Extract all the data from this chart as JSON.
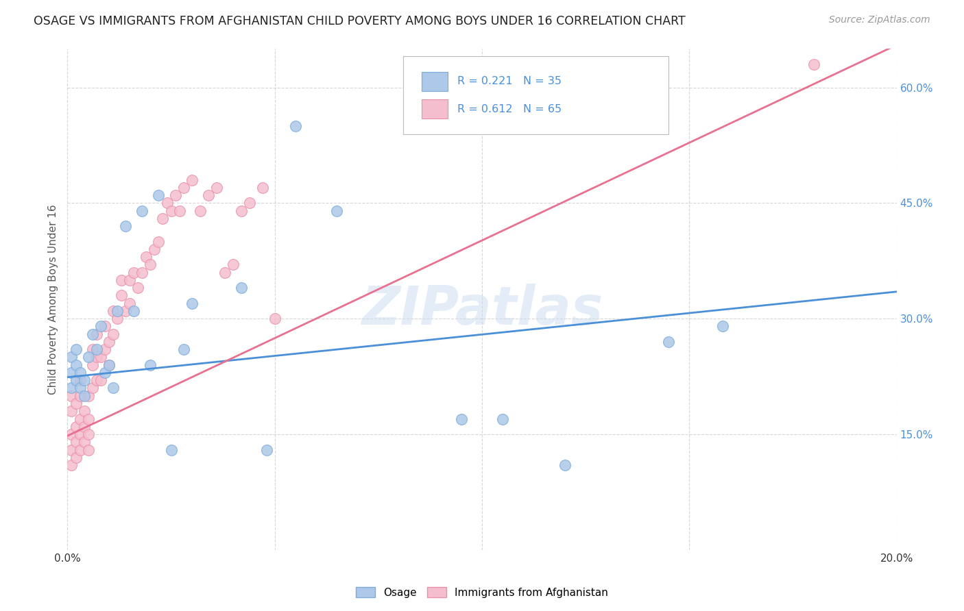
{
  "title": "OSAGE VS IMMIGRANTS FROM AFGHANISTAN CHILD POVERTY AMONG BOYS UNDER 16 CORRELATION CHART",
  "source": "Source: ZipAtlas.com",
  "ylabel": "Child Poverty Among Boys Under 16",
  "xlim": [
    0.0,
    0.2
  ],
  "ylim": [
    0.0,
    0.65
  ],
  "yticks": [
    0.0,
    0.15,
    0.3,
    0.45,
    0.6
  ],
  "xticks": [
    0.0,
    0.05,
    0.1,
    0.15,
    0.2
  ],
  "grid_color": "#cccccc",
  "background_color": "#ffffff",
  "watermark": "ZIPatlas",
  "osage_color": "#adc8e8",
  "osage_edge_color": "#7aabdc",
  "afghanistan_color": "#f5bece",
  "afghanistan_edge_color": "#e890a8",
  "trend_osage_color": "#4a90d9",
  "trend_afghanistan_color": "#e87090",
  "osage_label": "Osage",
  "afghanistan_label": "Immigrants from Afghanistan",
  "osage_x": [
    0.001,
    0.001,
    0.001,
    0.002,
    0.002,
    0.002,
    0.003,
    0.003,
    0.004,
    0.004,
    0.005,
    0.006,
    0.007,
    0.008,
    0.009,
    0.01,
    0.011,
    0.012,
    0.014,
    0.016,
    0.018,
    0.02,
    0.022,
    0.025,
    0.028,
    0.03,
    0.042,
    0.048,
    0.055,
    0.065,
    0.095,
    0.105,
    0.12,
    0.145,
    0.158
  ],
  "osage_y": [
    0.21,
    0.23,
    0.25,
    0.22,
    0.24,
    0.26,
    0.21,
    0.23,
    0.2,
    0.22,
    0.25,
    0.28,
    0.26,
    0.29,
    0.23,
    0.24,
    0.21,
    0.31,
    0.42,
    0.31,
    0.44,
    0.24,
    0.46,
    0.13,
    0.26,
    0.32,
    0.34,
    0.13,
    0.55,
    0.44,
    0.17,
    0.17,
    0.11,
    0.27,
    0.29
  ],
  "afghanistan_x": [
    0.001,
    0.001,
    0.001,
    0.001,
    0.001,
    0.002,
    0.002,
    0.002,
    0.002,
    0.003,
    0.003,
    0.003,
    0.003,
    0.003,
    0.004,
    0.004,
    0.004,
    0.005,
    0.005,
    0.005,
    0.005,
    0.006,
    0.006,
    0.006,
    0.007,
    0.007,
    0.007,
    0.008,
    0.008,
    0.009,
    0.009,
    0.01,
    0.01,
    0.011,
    0.011,
    0.012,
    0.013,
    0.013,
    0.014,
    0.015,
    0.015,
    0.016,
    0.017,
    0.018,
    0.019,
    0.02,
    0.021,
    0.022,
    0.023,
    0.024,
    0.025,
    0.026,
    0.027,
    0.028,
    0.03,
    0.032,
    0.034,
    0.036,
    0.038,
    0.04,
    0.042,
    0.044,
    0.047,
    0.05,
    0.18
  ],
  "afghanistan_y": [
    0.11,
    0.13,
    0.15,
    0.18,
    0.2,
    0.12,
    0.14,
    0.16,
    0.19,
    0.13,
    0.15,
    0.17,
    0.2,
    0.22,
    0.14,
    0.16,
    0.18,
    0.13,
    0.15,
    0.17,
    0.2,
    0.21,
    0.24,
    0.26,
    0.22,
    0.25,
    0.28,
    0.22,
    0.25,
    0.26,
    0.29,
    0.24,
    0.27,
    0.28,
    0.31,
    0.3,
    0.33,
    0.35,
    0.31,
    0.32,
    0.35,
    0.36,
    0.34,
    0.36,
    0.38,
    0.37,
    0.39,
    0.4,
    0.43,
    0.45,
    0.44,
    0.46,
    0.44,
    0.47,
    0.48,
    0.44,
    0.46,
    0.47,
    0.36,
    0.37,
    0.44,
    0.45,
    0.47,
    0.3,
    0.63
  ],
  "trend_osage_x0": 0.0,
  "trend_osage_y0": 0.224,
  "trend_osage_x1": 0.2,
  "trend_osage_y1": 0.335,
  "trend_af_x0": 0.0,
  "trend_af_y0": 0.148,
  "trend_af_x1": 0.2,
  "trend_af_y1": 0.655
}
